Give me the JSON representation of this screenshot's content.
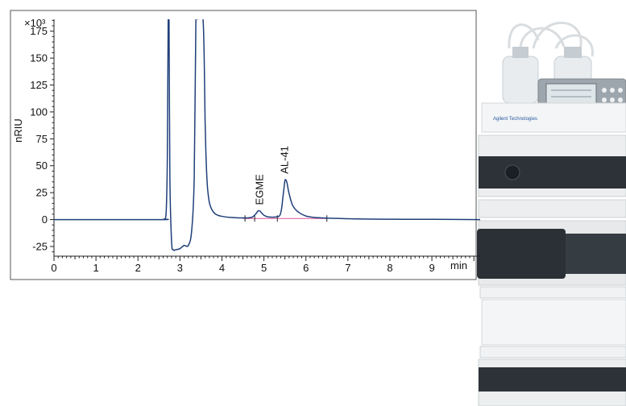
{
  "chart_data": {
    "type": "line",
    "title": "",
    "xlabel": "min",
    "ylabel": "nRIU",
    "y_multiplier_label": "×10³",
    "xlim": [
      0,
      10.15
    ],
    "ylim": [
      -34,
      186
    ],
    "x_ticks": [
      0,
      1,
      2,
      3,
      4,
      5,
      6,
      7,
      8,
      9
    ],
    "y_ticks": [
      -25,
      0,
      25,
      50,
      75,
      100,
      125,
      150,
      175
    ],
    "grid": false,
    "legend": "none",
    "series": [
      {
        "color": "#1f3f7a",
        "x": [
          0,
          2.5,
          2.62,
          2.66,
          2.68,
          2.7,
          2.72,
          2.74,
          2.76,
          2.8,
          2.84,
          2.9,
          3.0,
          3.1,
          3.2,
          3.28,
          3.34,
          3.38,
          3.42,
          3.55,
          3.6,
          3.62,
          3.64,
          3.66,
          3.7,
          3.75,
          3.82,
          3.9,
          4.0,
          4.2,
          4.5,
          4.7,
          4.8,
          4.86,
          4.9,
          4.95,
          5.0,
          5.1,
          5.3,
          5.38,
          5.42,
          5.45,
          5.48,
          5.5,
          5.52,
          5.55,
          5.6,
          5.7,
          5.9,
          6.2,
          7.0,
          8.0,
          9.0,
          10.15
        ],
        "y": [
          0,
          0,
          0.5,
          2,
          15,
          60,
          186,
          186,
          40,
          -20,
          -28,
          -28,
          -27,
          -24,
          -24,
          -10,
          40,
          186,
          186,
          186,
          90,
          60,
          40,
          28,
          16,
          10,
          6,
          4,
          3,
          2,
          1.5,
          2,
          5,
          8,
          8,
          6,
          4,
          2.5,
          2.5,
          4,
          10,
          20,
          30,
          36,
          37,
          34,
          24,
          12,
          5,
          2,
          0.8,
          0.3,
          0.2,
          0
        ]
      }
    ],
    "baseline": {
      "color": "#e0559a",
      "x": [
        4.5,
        6.5
      ],
      "y": [
        1,
        1
      ]
    },
    "annotations": [
      {
        "text": "EGME",
        "x": 4.9,
        "y": 9
      },
      {
        "text": "AL-41",
        "x": 5.5,
        "y": 38
      }
    ]
  },
  "instrument_image": {
    "brand_text": "Agilent Technologies"
  }
}
